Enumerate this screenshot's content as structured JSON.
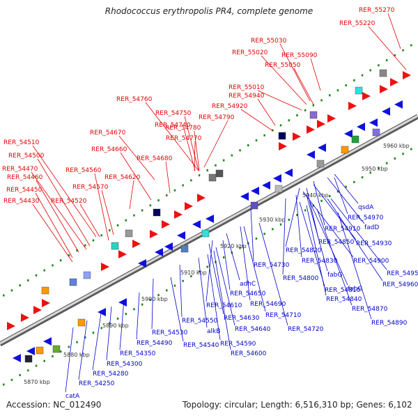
{
  "title": "Rhodococcus erythropolis PR4, complete genome",
  "footer": {
    "accession": "Accession: NC_012490",
    "topology": "Topology: circular; Length: 6,516,310 bp; Genes: 6,102"
  },
  "colors": {
    "forward_label": "#e00000",
    "reverse_label": "#0000cc",
    "backbone": "#9a9a9a",
    "tick": "#1a8a1a",
    "scale_text": "#333333"
  },
  "scale_labels": [
    "5870 kbp",
    "5880 kbp",
    "5890 kbp",
    "5900 kbp",
    "5910 kbp",
    "5920 kbp",
    "5930 kbp",
    "5940 kbp",
    "5950 kbp",
    "5960 kbp"
  ],
  "top_labels": [
    "RER_55270",
    "RER_55220",
    "RER_55030",
    "RER_55020",
    "RER_55090",
    "RER_55050",
    "RER_55010",
    "RER_54940",
    "RER_54920",
    "RER_54760",
    "RER_54750",
    "RER_54790",
    "RER_54740",
    "RER_54780",
    "RER_54670",
    "RER_54770",
    "RER_54660",
    "RER_54680",
    "RER_54510",
    "RER_54500",
    "RER_54560",
    "RER_54470",
    "RER_54620",
    "RER_54460",
    "RER_54570",
    "RER_54450",
    "RER_54520",
    "RER_54430"
  ],
  "bottom_labels": [
    "qsdA",
    "RER_54970",
    "fadD",
    "RER_54910",
    "RER_54930",
    "RER_54850",
    "RER_54820",
    "RER_54900",
    "RER_54730",
    "RER_54830",
    "fabG",
    "RER_54800",
    "RER_54950",
    "RER_54960",
    "adhC",
    "RER_54810",
    "fabG",
    "RER_54650",
    "RER_54840",
    "RER_54690",
    "RER_54610",
    "RER_54870",
    "RER_54710",
    "RER_54630",
    "RER_54890",
    "RER_54550",
    "RER_54720",
    "RER_54640",
    "RER_54530",
    "alkB",
    "RER_54490",
    "RER_54590",
    "RER_54540",
    "RER_54350",
    "RER_54600",
    "RER_54300",
    "RER_54280",
    "RER_54250",
    "catA"
  ]
}
